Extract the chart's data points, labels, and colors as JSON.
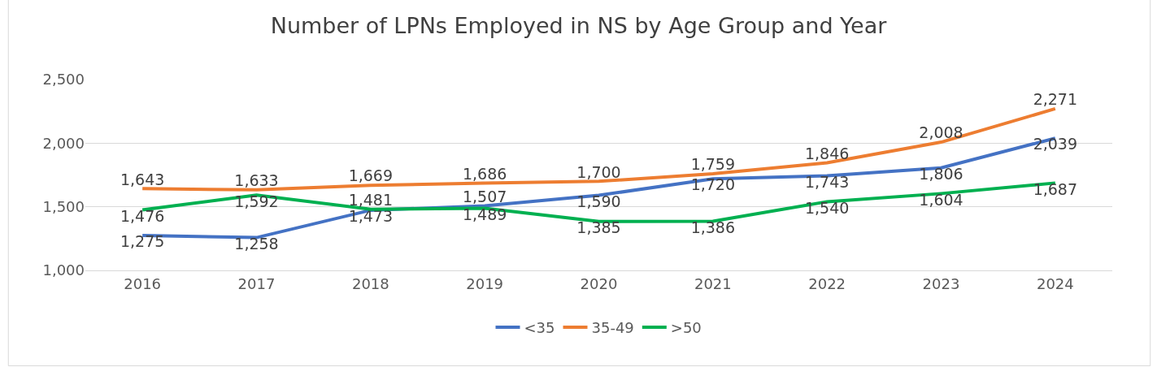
{
  "chart_data": {
    "type": "line",
    "title": "Number of LPNs Employed in NS by Age Group and Year",
    "categories": [
      "2016",
      "2017",
      "2018",
      "2019",
      "2020",
      "2021",
      "2022",
      "2023",
      "2024"
    ],
    "series": [
      {
        "name": "<35",
        "color": "#4472c4",
        "values": [
          1275,
          1258,
          1473,
          1507,
          1590,
          1720,
          1743,
          1806,
          2039
        ],
        "value_labels": [
          "1,275",
          "1,258",
          "1,473",
          "1,507",
          "1,590",
          "1,720",
          "1,743",
          "1,806",
          "2,039"
        ]
      },
      {
        "name": "35-49",
        "color": "#ed7d31",
        "values": [
          1643,
          1633,
          1669,
          1686,
          1700,
          1759,
          1846,
          2008,
          2271
        ],
        "value_labels": [
          "1,643",
          "1,633",
          "1,669",
          "1,686",
          "1,700",
          "1,759",
          "1,846",
          "2,008",
          "2,271"
        ]
      },
      {
        "name": ">50",
        "color": "#00b050",
        "values": [
          1476,
          1592,
          1481,
          1489,
          1385,
          1386,
          1540,
          1604,
          1687
        ],
        "value_labels": [
          "1,476",
          "1,592",
          "1,481",
          "1,489",
          "1,385",
          "1,386",
          "1,540",
          "1,604",
          "1,687"
        ]
      }
    ],
    "ylim": [
      1000,
      2500
    ],
    "yticks": [
      {
        "value": 1000,
        "label": "1,000"
      },
      {
        "value": 1500,
        "label": "1,500"
      },
      {
        "value": 2000,
        "label": "2,000"
      },
      {
        "value": 2500,
        "label": "2,500"
      }
    ],
    "grid": "y",
    "legend": "bottom",
    "marker": "none",
    "line_style": "solid"
  }
}
